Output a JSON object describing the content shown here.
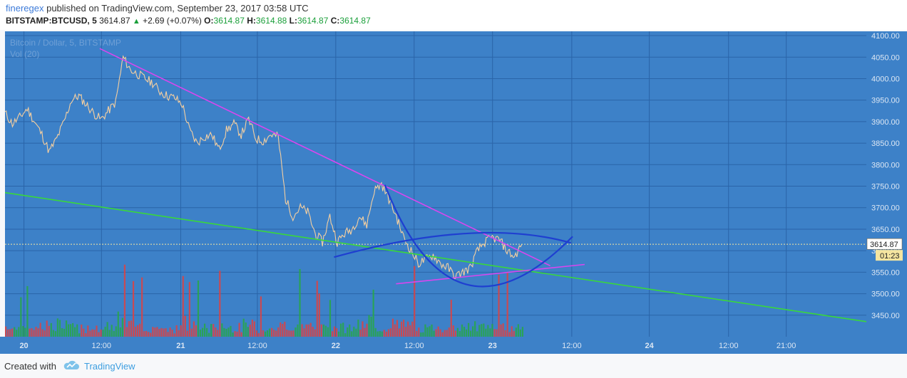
{
  "header": {
    "author": "fineregex",
    "published_text": " published on TradingView.com, September 23, 2017 03:58 UTC",
    "symbol": "BITSTAMP:BTCUSD, 5",
    "last": "3614.87",
    "change": "+2.69 (+0.07%)",
    "o_label": "O:",
    "o_value": "3614.87",
    "h_label": "H:",
    "h_value": "3614.88",
    "l_label": "L:",
    "l_value": "3614.87",
    "c_label": "C:",
    "c_value": "3614.87"
  },
  "footer": {
    "created_with": "Created with",
    "brand": "TradingView"
  },
  "chart_data": {
    "type": "line",
    "title": "Bitcoin / Dollar, 5, BITSTAMP",
    "volume_label": "Vol (20)",
    "price_label": "3614.87",
    "countdown": "01:23",
    "y_ticks": [
      "4100.00",
      "4050.00",
      "4000.00",
      "3950.00",
      "3900.00",
      "3850.00",
      "3800.00",
      "3750.00",
      "3700.00",
      "3650.00",
      "3600.00",
      "3550.00",
      "3500.00",
      "3450.00"
    ],
    "x_ticks": [
      "20",
      "12:00",
      "21",
      "12:00",
      "22",
      "12:00",
      "23",
      "12:00",
      "24",
      "12:00",
      "21:00"
    ],
    "ylim": [
      3400,
      4110
    ],
    "grid": true,
    "colors": {
      "background": "#3d81c8",
      "price": "#f5cfa0",
      "trend_upper": "#d946ef",
      "trend_lower": "#39d83a",
      "pattern": "#1f3fd0",
      "volume_up": "#27a844",
      "volume_down": "#e0413f"
    },
    "series": [
      {
        "values": [
          3920,
          3895,
          3910,
          3930,
          3900,
          3870,
          3830,
          3860,
          3900,
          3950,
          3960,
          3940,
          3920,
          3905,
          3925,
          3945,
          4050,
          4020,
          4010,
          4000,
          3990,
          3970,
          3960,
          3955,
          3940,
          3880,
          3850,
          3865,
          3870,
          3835,
          3880,
          3895,
          3870,
          3905,
          3860,
          3855,
          3870,
          3865,
          3720,
          3680,
          3700,
          3690,
          3640,
          3620,
          3680,
          3620,
          3640,
          3650,
          3680,
          3660,
          3740,
          3755,
          3720,
          3680,
          3630,
          3600,
          3570,
          3580,
          3590,
          3570,
          3560,
          3540,
          3550,
          3560,
          3600,
          3620,
          3630,
          3625,
          3600,
          3585,
          3614.87
        ]
      }
    ],
    "drawings": [
      {
        "name": "upper trendline",
        "points": [
          [
            0.11,
            4070
          ],
          [
            0.633,
            3565
          ]
        ]
      },
      {
        "name": "long support line",
        "points": [
          [
            0.0,
            3735
          ],
          [
            1.0,
            3435
          ]
        ]
      },
      {
        "name": "lower rising line",
        "points": [
          [
            0.454,
            3523
          ],
          [
            0.673,
            3568
          ]
        ]
      },
      {
        "name": "cup curve",
        "points": [
          [
            0.441,
            3753
          ],
          [
            0.535,
            3522
          ],
          [
            0.659,
            3633
          ]
        ]
      },
      {
        "name": "dome arc",
        "points": [
          [
            0.382,
            3585
          ],
          [
            0.535,
            3640
          ],
          [
            0.657,
            3618
          ]
        ]
      }
    ]
  }
}
